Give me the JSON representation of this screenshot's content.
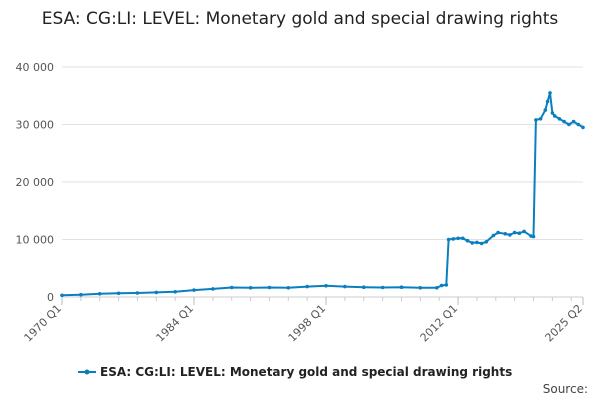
{
  "chart_data": {
    "type": "line",
    "title": "ESA: CG:LI: LEVEL: Monetary gold and special drawing rights",
    "xlabel": "",
    "ylabel": "",
    "ylim": [
      0,
      40000
    ],
    "y_ticks": [
      0,
      10000,
      20000,
      30000,
      40000
    ],
    "y_tick_labels": [
      "0",
      "10 000",
      "20 000",
      "30 000",
      "40 000"
    ],
    "x_tick_labels": [
      "1970 Q1",
      "1984 Q1",
      "1998 Q1",
      "2012 Q1",
      "2025 Q2"
    ],
    "grid": true,
    "legend_position": "bottom",
    "color": "#0a7fbf",
    "series": [
      {
        "name": "ESA: CG:LI: LEVEL: Monetary gold and special drawing rights",
        "points": [
          [
            "1970 Q1",
            300
          ],
          [
            "1972 Q1",
            400
          ],
          [
            "1974 Q1",
            550
          ],
          [
            "1976 Q1",
            650
          ],
          [
            "1978 Q1",
            700
          ],
          [
            "1980 Q1",
            800
          ],
          [
            "1982 Q1",
            900
          ],
          [
            "1984 Q1",
            1200
          ],
          [
            "1986 Q1",
            1400
          ],
          [
            "1988 Q1",
            1650
          ],
          [
            "1990 Q1",
            1600
          ],
          [
            "1992 Q1",
            1650
          ],
          [
            "1994 Q1",
            1600
          ],
          [
            "1996 Q1",
            1800
          ],
          [
            "1998 Q1",
            1950
          ],
          [
            "2000 Q1",
            1800
          ],
          [
            "2002 Q1",
            1700
          ],
          [
            "2004 Q1",
            1650
          ],
          [
            "2006 Q1",
            1700
          ],
          [
            "2008 Q1",
            1600
          ],
          [
            "2009 Q4",
            1600
          ],
          [
            "2010 Q2",
            2000
          ],
          [
            "2010 Q4",
            2100
          ],
          [
            "2011 Q1",
            10000
          ],
          [
            "2011 Q3",
            10100
          ],
          [
            "2012 Q1",
            10200
          ],
          [
            "2012 Q3",
            10200
          ],
          [
            "2013 Q1",
            9800
          ],
          [
            "2013 Q3",
            9400
          ],
          [
            "2014 Q1",
            9500
          ],
          [
            "2014 Q3",
            9300
          ],
          [
            "2015 Q1",
            9600
          ],
          [
            "2015 Q4",
            10700
          ],
          [
            "2016 Q2",
            11200
          ],
          [
            "2017 Q1",
            11000
          ],
          [
            "2017 Q3",
            10800
          ],
          [
            "2018 Q1",
            11200
          ],
          [
            "2018 Q3",
            11100
          ],
          [
            "2019 Q1",
            11400
          ],
          [
            "2019 Q4",
            10600
          ],
          [
            "2020 Q1",
            10500
          ],
          [
            "2020 Q2",
            30800
          ],
          [
            "2020 Q4",
            31000
          ],
          [
            "2021 Q2",
            32500
          ],
          [
            "2021 Q3",
            34000
          ],
          [
            "2021 Q4",
            35500
          ],
          [
            "2022 Q1",
            32000
          ],
          [
            "2022 Q2",
            31500
          ],
          [
            "2022 Q4",
            31000
          ],
          [
            "2023 Q2",
            30500
          ],
          [
            "2023 Q4",
            30000
          ],
          [
            "2024 Q2",
            30500
          ],
          [
            "2024 Q4",
            30000
          ],
          [
            "2025 Q2",
            29500
          ]
        ]
      }
    ],
    "source_label": "Source:"
  }
}
